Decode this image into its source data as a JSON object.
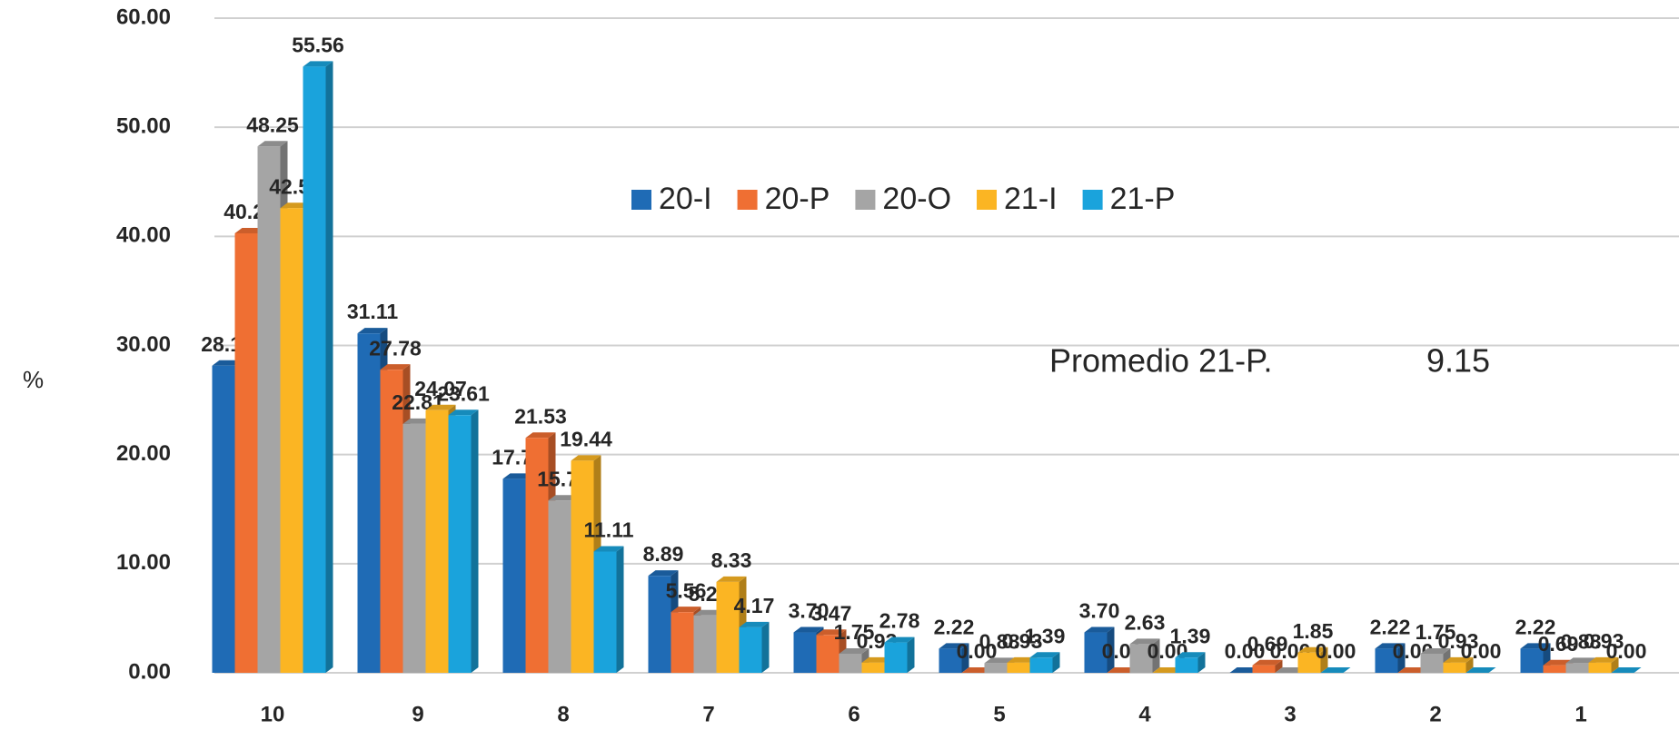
{
  "chart_data": {
    "type": "bar",
    "y_label": "%",
    "categories": [
      "10",
      "9",
      "8",
      "7",
      "6",
      "5",
      "4",
      "3",
      "2",
      "1"
    ],
    "series": [
      {
        "name": "20-I",
        "color": "#1f6bb5",
        "values": [
          28.15,
          31.11,
          17.78,
          8.89,
          3.7,
          2.22,
          3.7,
          0.0,
          2.22,
          2.22
        ],
        "value_labels": [
          "28.15",
          "31.11",
          "17.78",
          "8.89",
          "3.70",
          "2.22",
          "3.70",
          "0.00",
          "2.22",
          "2.22"
        ]
      },
      {
        "name": "20-P",
        "color": "#ef6f33",
        "values": [
          40.28,
          27.78,
          21.53,
          5.56,
          3.47,
          0.0,
          0.0,
          0.69,
          0.0,
          0.69
        ],
        "value_labels": [
          "40.28",
          "27.78",
          "21.53",
          "5.56",
          "3.47",
          "0.00",
          "0.00",
          "0.69",
          "0.00",
          "0.69"
        ]
      },
      {
        "name": "20-O",
        "color": "#a5a5a5",
        "values": [
          48.25,
          22.81,
          15.79,
          5.26,
          1.75,
          0.88,
          2.63,
          0.0,
          1.75,
          0.88
        ],
        "value_labels": [
          "48.25",
          "22.81",
          "15.79",
          "5.26",
          "1.75",
          "0.88",
          "2.63",
          "0.00",
          "1.75",
          "0.88"
        ]
      },
      {
        "name": "21-I",
        "color": "#fbb523",
        "values": [
          42.59,
          24.07,
          19.44,
          8.33,
          0.93,
          0.93,
          0.0,
          1.85,
          0.93,
          0.93
        ],
        "value_labels": [
          "42.59",
          "24.07",
          "19.44",
          "8.33",
          "0.93",
          "0.93",
          "0.00",
          "1.85",
          "0.93",
          "0.93"
        ]
      },
      {
        "name": "21-P",
        "color": "#1aa3dc",
        "values": [
          55.56,
          23.61,
          11.11,
          4.17,
          2.78,
          1.39,
          1.39,
          0.0,
          0.0,
          0.0
        ],
        "value_labels": [
          "55.56",
          "23.61",
          "11.11",
          "4.17",
          "2.78",
          "1.39",
          "1.39",
          "0.00",
          "0.00",
          "0.00"
        ]
      }
    ],
    "ylim": [
      0,
      60
    ],
    "yticks": [
      {
        "value": 0,
        "label": "0.00"
      },
      {
        "value": 10,
        "label": "10.00"
      },
      {
        "value": 20,
        "label": "20.00"
      },
      {
        "value": 30,
        "label": "30.00"
      },
      {
        "value": 40,
        "label": "40.00"
      },
      {
        "value": 50,
        "label": "50.00"
      },
      {
        "value": 60,
        "label": "60.00"
      }
    ],
    "grid": true,
    "legend": "top",
    "annotations": [
      "Promedio 21-P.",
      "9.15"
    ]
  }
}
